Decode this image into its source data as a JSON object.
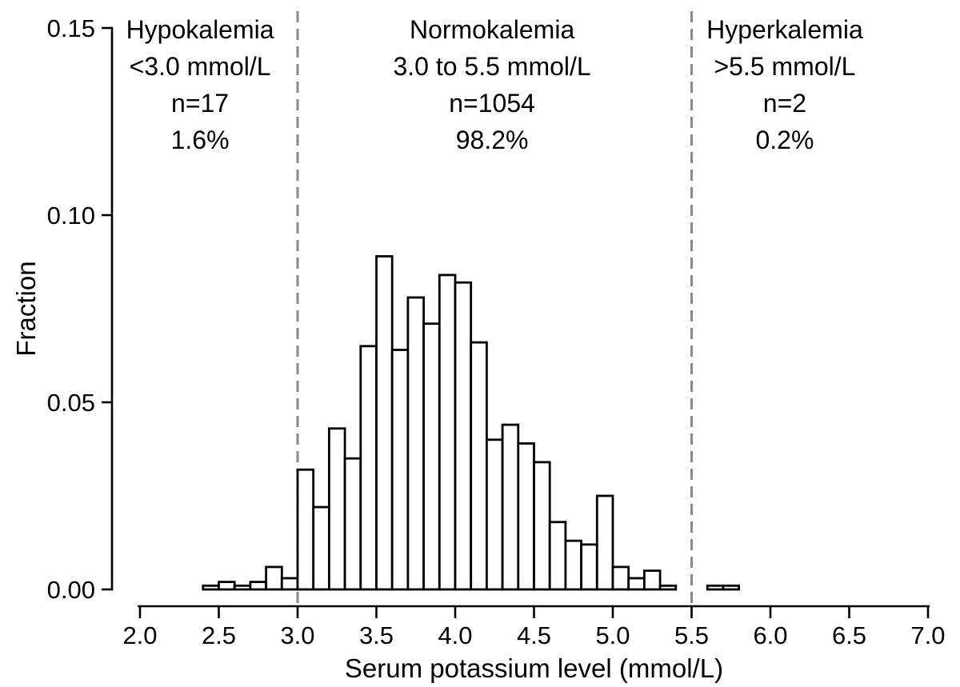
{
  "figure": {
    "description": "Histogram of serum potassium level distribution"
  },
  "chart_data": {
    "type": "bar",
    "subtype": "histogram",
    "title": "",
    "xlabel": "Serum potassium level (mmol/L)",
    "ylabel": "Fraction",
    "xlim": [
      2.0,
      7.0
    ],
    "ylim": [
      0.0,
      0.15
    ],
    "grid": false,
    "legend": null,
    "bin_width": 0.1,
    "x_ticks": [
      "2.0",
      "2.5",
      "3.0",
      "3.5",
      "4.0",
      "4.5",
      "5.0",
      "5.5",
      "6.0",
      "6.5",
      "7.0"
    ],
    "y_ticks": [
      "0.00",
      "0.05",
      "0.10",
      "0.15"
    ],
    "bar_fill": "#ffffff",
    "bar_stroke": "#000000",
    "axis_color": "#000000",
    "reference_lines": {
      "values": [
        3.0,
        5.5
      ],
      "color": "#8a8a8a",
      "style": "dashed"
    },
    "bins": [
      {
        "start": 2.4,
        "fraction": 0.001
      },
      {
        "start": 2.5,
        "fraction": 0.002
      },
      {
        "start": 2.6,
        "fraction": 0.001
      },
      {
        "start": 2.7,
        "fraction": 0.002
      },
      {
        "start": 2.8,
        "fraction": 0.006
      },
      {
        "start": 2.9,
        "fraction": 0.003
      },
      {
        "start": 3.0,
        "fraction": 0.032
      },
      {
        "start": 3.1,
        "fraction": 0.022
      },
      {
        "start": 3.2,
        "fraction": 0.043
      },
      {
        "start": 3.3,
        "fraction": 0.035
      },
      {
        "start": 3.4,
        "fraction": 0.065
      },
      {
        "start": 3.5,
        "fraction": 0.089
      },
      {
        "start": 3.6,
        "fraction": 0.064
      },
      {
        "start": 3.7,
        "fraction": 0.078
      },
      {
        "start": 3.8,
        "fraction": 0.071
      },
      {
        "start": 3.9,
        "fraction": 0.084
      },
      {
        "start": 4.0,
        "fraction": 0.082
      },
      {
        "start": 4.1,
        "fraction": 0.066
      },
      {
        "start": 4.2,
        "fraction": 0.04
      },
      {
        "start": 4.3,
        "fraction": 0.044
      },
      {
        "start": 4.4,
        "fraction": 0.039
      },
      {
        "start": 4.5,
        "fraction": 0.034
      },
      {
        "start": 4.6,
        "fraction": 0.018
      },
      {
        "start": 4.7,
        "fraction": 0.013
      },
      {
        "start": 4.8,
        "fraction": 0.012
      },
      {
        "start": 4.9,
        "fraction": 0.025
      },
      {
        "start": 5.0,
        "fraction": 0.006
      },
      {
        "start": 5.1,
        "fraction": 0.003
      },
      {
        "start": 5.2,
        "fraction": 0.005
      },
      {
        "start": 5.3,
        "fraction": 0.001
      },
      {
        "start": 5.6,
        "fraction": 0.001
      },
      {
        "start": 5.7,
        "fraction": 0.001
      }
    ],
    "annotations": [
      {
        "x": 2.381,
        "lines": [
          "Hypokalemia",
          "<3.0 mmol/L",
          "n=17",
          "1.6%"
        ]
      },
      {
        "x": 4.234,
        "lines": [
          "Normokalemia",
          "3.0 to 5.5 mmol/L",
          "n=1054",
          "98.2%"
        ]
      },
      {
        "x": 6.091,
        "lines": [
          "Hyperkalemia",
          ">5.5 mmol/L",
          "n=2",
          "0.2%"
        ]
      }
    ]
  }
}
